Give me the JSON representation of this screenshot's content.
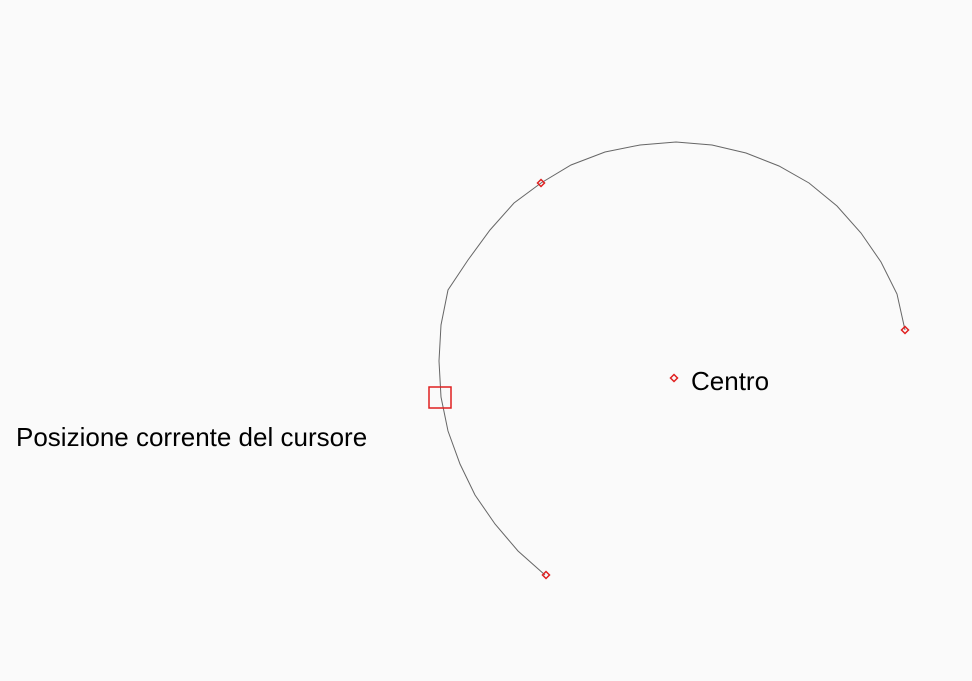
{
  "labels": {
    "center": "Centro",
    "cursor": "Posizione corrente del cursore"
  },
  "colors": {
    "background": "#fafafa",
    "arc": "#666666",
    "marker": "#e02020",
    "text": "#000000"
  },
  "icons": {
    "point_marker": "diamond-point-icon",
    "cursor_marker": "square-cursor-icon"
  }
}
